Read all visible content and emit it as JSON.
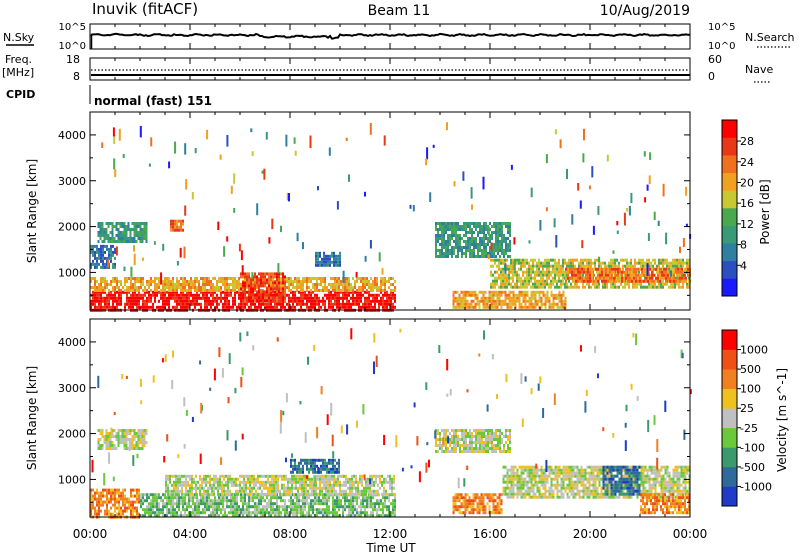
{
  "header": {
    "station": "Inuvik (fitACF)",
    "beam": "Beam 11",
    "date": "10/Aug/2019"
  },
  "top_panel": {
    "left_label": "N.Sky",
    "left_ticks": [
      "10^5",
      "10^0"
    ],
    "right_label": "N.Search",
    "right_ticks": [
      "10^5",
      "10^0"
    ]
  },
  "freq_panel": {
    "left_label_line1": "Freq.",
    "left_label_line2": "[MHz]",
    "left_ticks": [
      "18",
      "8"
    ],
    "right_label": "Nave",
    "right_ticks": [
      "60",
      "0"
    ]
  },
  "cpid": {
    "label": "CPID",
    "value": "normal (fast) 151"
  },
  "x_axis": {
    "label": "Time UT",
    "ticks": [
      "00:00",
      "04:00",
      "08:00",
      "12:00",
      "16:00",
      "20:00",
      "00:00"
    ]
  },
  "chart_data": [
    {
      "type": "heatmap",
      "ylabel": "Slant Range [km]",
      "y_ticks": [
        1000,
        2000,
        3000,
        4000
      ],
      "ylim": [
        180,
        4500
      ],
      "xlim_hours": [
        0,
        24
      ],
      "colorbar": {
        "label": "Power [dB]",
        "ticks": [
          "4",
          "8",
          "12",
          "16",
          "20",
          "24",
          "28"
        ],
        "colors": [
          "#1a1aff",
          "#2b4fc0",
          "#2e7fa0",
          "#3a9a78",
          "#4aa84e",
          "#c8c832",
          "#f2a020",
          "#f07020",
          "#e83818",
          "#ff0000"
        ]
      },
      "regions": [
        {
          "t": [
            0.0,
            12.2
          ],
          "r": [
            180,
            600
          ],
          "level": 9
        },
        {
          "t": [
            0.0,
            12.2
          ],
          "r": [
            600,
            900
          ],
          "level": 6
        },
        {
          "t": [
            6.0,
            7.8
          ],
          "r": [
            350,
            1000
          ],
          "level": 8
        },
        {
          "t": [
            0.3,
            2.3
          ],
          "r": [
            1650,
            2100
          ],
          "level": 3
        },
        {
          "t": [
            0.0,
            1.0
          ],
          "r": [
            1100,
            1600
          ],
          "level": 2
        },
        {
          "t": [
            3.2,
            3.7
          ],
          "r": [
            1950,
            2150
          ],
          "level": 7
        },
        {
          "t": [
            13.8,
            16.8
          ],
          "r": [
            1350,
            2100
          ],
          "level": 3
        },
        {
          "t": [
            14.5,
            19.0
          ],
          "r": [
            250,
            600
          ],
          "level": 6
        },
        {
          "t": [
            16.0,
            24.0
          ],
          "r": [
            700,
            1300
          ],
          "level": 5
        },
        {
          "t": [
            19.0,
            24.0
          ],
          "r": [
            800,
            1100
          ],
          "level": 7
        },
        {
          "t": [
            9.0,
            10.0
          ],
          "r": [
            1150,
            1450
          ],
          "level": 2
        }
      ]
    },
    {
      "type": "heatmap",
      "ylabel": "Slant Range [km]",
      "y_ticks": [
        1000,
        2000,
        3000,
        4000
      ],
      "ylim": [
        180,
        4500
      ],
      "xlim_hours": [
        0,
        24
      ],
      "colorbar": {
        "label": "Velocity [m s^-1]",
        "ticks": [
          "1000",
          "500",
          "100",
          "25",
          "-25",
          "-100",
          "-500",
          "-1000"
        ],
        "colors": [
          "#1e3cc8",
          "#2e6a9a",
          "#3a9a6a",
          "#6ac83a",
          "#c0c0c0",
          "#f0c020",
          "#f08020",
          "#f05018",
          "#ff0000"
        ]
      },
      "regions": [
        {
          "t": [
            0.0,
            2.0
          ],
          "r": [
            180,
            800
          ],
          "level": 6
        },
        {
          "t": [
            2.0,
            12.2
          ],
          "r": [
            180,
            700
          ],
          "level": 3
        },
        {
          "t": [
            3.0,
            12.2
          ],
          "r": [
            700,
            1100
          ],
          "level": 4
        },
        {
          "t": [
            0.3,
            2.3
          ],
          "r": [
            1650,
            2100
          ],
          "level": 4
        },
        {
          "t": [
            8.0,
            10.0
          ],
          "r": [
            1150,
            1450
          ],
          "level": 1
        },
        {
          "t": [
            13.8,
            16.8
          ],
          "r": [
            1600,
            2100
          ],
          "level": 4
        },
        {
          "t": [
            14.5,
            16.5
          ],
          "r": [
            300,
            700
          ],
          "level": 6
        },
        {
          "t": [
            16.5,
            24.0
          ],
          "r": [
            600,
            1300
          ],
          "level": 4
        },
        {
          "t": [
            20.5,
            22.0
          ],
          "r": [
            700,
            1300
          ],
          "level": 1
        },
        {
          "t": [
            22.0,
            24.0
          ],
          "r": [
            300,
            700
          ],
          "level": 6
        }
      ]
    }
  ]
}
